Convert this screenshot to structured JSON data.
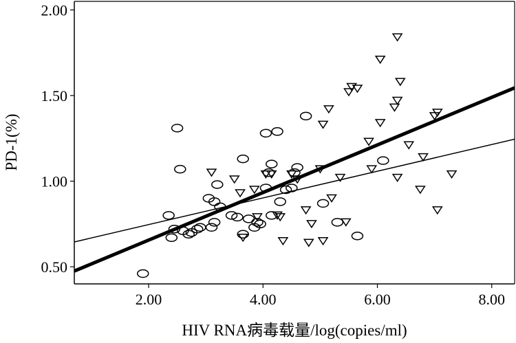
{
  "chart_data": {
    "type": "scatter",
    "title": "",
    "xlabel": "HIV RNA病毒载量/log(copies/ml)",
    "ylabel": "PD-1(%)",
    "xlim": [
      0.7,
      8.4
    ],
    "ylim": [
      0.4,
      2.05
    ],
    "xticks": [
      "2.00",
      "4.00",
      "6.00",
      "8.00"
    ],
    "yticks": [
      "0.50",
      "1.00",
      "1.50",
      "2.00"
    ],
    "grid": false,
    "legend": "none",
    "colors": {
      "ink": "#000000",
      "background": "#ffffff"
    },
    "series": [
      {
        "marker": "circle",
        "points": [
          [
            1.9,
            0.46
          ],
          [
            2.35,
            0.8
          ],
          [
            2.45,
            0.72
          ],
          [
            2.5,
            1.31
          ],
          [
            2.55,
            1.07
          ],
          [
            2.4,
            0.67
          ],
          [
            2.6,
            0.71
          ],
          [
            2.7,
            0.69
          ],
          [
            2.75,
            0.7
          ],
          [
            2.85,
            0.72
          ],
          [
            2.9,
            0.73
          ],
          [
            3.05,
            0.9
          ],
          [
            3.1,
            0.73
          ],
          [
            3.15,
            0.76
          ],
          [
            3.15,
            0.88
          ],
          [
            3.2,
            0.98
          ],
          [
            3.25,
            0.85
          ],
          [
            3.45,
            0.8
          ],
          [
            3.55,
            0.79
          ],
          [
            3.65,
            1.13
          ],
          [
            3.65,
            0.69
          ],
          [
            3.75,
            0.78
          ],
          [
            3.85,
            0.73
          ],
          [
            3.9,
            0.76
          ],
          [
            3.95,
            0.75
          ],
          [
            4.05,
            0.96
          ],
          [
            4.1,
            1.05
          ],
          [
            4.05,
            1.28
          ],
          [
            4.15,
            1.1
          ],
          [
            4.15,
            0.8
          ],
          [
            4.25,
            1.29
          ],
          [
            4.3,
            0.88
          ],
          [
            4.4,
            0.95
          ],
          [
            4.55,
            1.05
          ],
          [
            4.6,
            1.08
          ],
          [
            4.5,
            0.96
          ],
          [
            4.75,
            1.38
          ],
          [
            5.05,
            0.87
          ],
          [
            5.3,
            0.76
          ],
          [
            5.65,
            0.68
          ],
          [
            6.1,
            1.12
          ]
        ]
      },
      {
        "marker": "triangle-down",
        "points": [
          [
            3.1,
            1.05
          ],
          [
            3.5,
            1.01
          ],
          [
            3.6,
            0.93
          ],
          [
            3.65,
            0.67
          ],
          [
            3.85,
            0.95
          ],
          [
            3.9,
            0.79
          ],
          [
            4.05,
            1.04
          ],
          [
            4.15,
            1.04
          ],
          [
            4.25,
            0.8
          ],
          [
            4.3,
            0.79
          ],
          [
            4.35,
            0.65
          ],
          [
            4.5,
            1.04
          ],
          [
            4.6,
            1.01
          ],
          [
            4.75,
            0.83
          ],
          [
            4.8,
            0.64
          ],
          [
            4.85,
            0.75
          ],
          [
            5.0,
            1.07
          ],
          [
            5.05,
            0.65
          ],
          [
            5.05,
            1.33
          ],
          [
            5.15,
            1.42
          ],
          [
            5.2,
            0.9
          ],
          [
            5.35,
            1.02
          ],
          [
            5.45,
            0.76
          ],
          [
            5.5,
            1.52
          ],
          [
            5.55,
            1.55
          ],
          [
            5.65,
            1.54
          ],
          [
            5.85,
            1.23
          ],
          [
            5.9,
            1.07
          ],
          [
            6.05,
            1.71
          ],
          [
            6.05,
            1.34
          ],
          [
            6.3,
            1.43
          ],
          [
            6.35,
            1.84
          ],
          [
            6.35,
            1.47
          ],
          [
            6.4,
            1.58
          ],
          [
            6.35,
            1.02
          ],
          [
            6.55,
            1.21
          ],
          [
            6.75,
            0.95
          ],
          [
            6.8,
            1.14
          ],
          [
            7.05,
            1.4
          ],
          [
            7.0,
            1.38
          ],
          [
            7.05,
            0.83
          ],
          [
            7.3,
            1.04
          ]
        ]
      }
    ],
    "fit_lines": [
      {
        "style": "bold",
        "x": [
          0.7,
          8.4
        ],
        "y": [
          0.475,
          1.545
        ]
      },
      {
        "style": "thin",
        "x": [
          0.7,
          8.4
        ],
        "y": [
          0.645,
          1.245
        ]
      }
    ]
  }
}
